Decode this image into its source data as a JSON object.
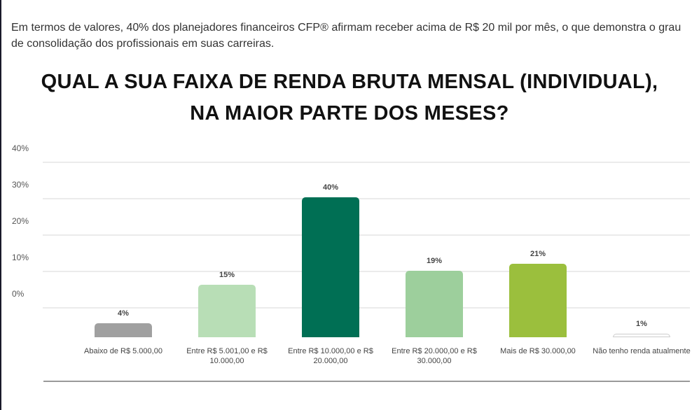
{
  "intro_text": "Em termos de valores, 40% dos planejadores financeiros CFP® afirmam receber acima de R$ 20 mil por mês, o que demonstra o grau de consolidação dos profissionais em suas carreiras.",
  "chart_data": {
    "type": "bar",
    "title_lines": [
      "QUAL A SUA FAIXA DE RENDA BRUTA MENSAL (INDIVIDUAL),",
      "NA MAIOR PARTE DOS MESES?"
    ],
    "y_ticks": [
      "40%",
      "30%",
      "20%",
      "10%",
      "0%"
    ],
    "ylim": [
      0,
      40
    ],
    "grid": true,
    "categories": [
      "Abaixo de R$ 5.000,00",
      "Entre R$ 5.001,00 e R$ 10.000,00",
      "Entre R$ 10.000,00 e R$ 20.000,00",
      "Entre R$ 20.000,00 e R$ 30.000,00",
      "Mais de R$ 30.000,00",
      "Não tenho renda atualmente"
    ],
    "values": [
      4,
      15,
      40,
      19,
      21,
      1
    ],
    "value_labels": [
      "4%",
      "15%",
      "40%",
      "19%",
      "21%",
      "1%"
    ],
    "colors": [
      "#a0a0a0",
      "#b8deb6",
      "#006f54",
      "#9dcf9c",
      "#9bbf3d",
      "#ffffff"
    ]
  }
}
